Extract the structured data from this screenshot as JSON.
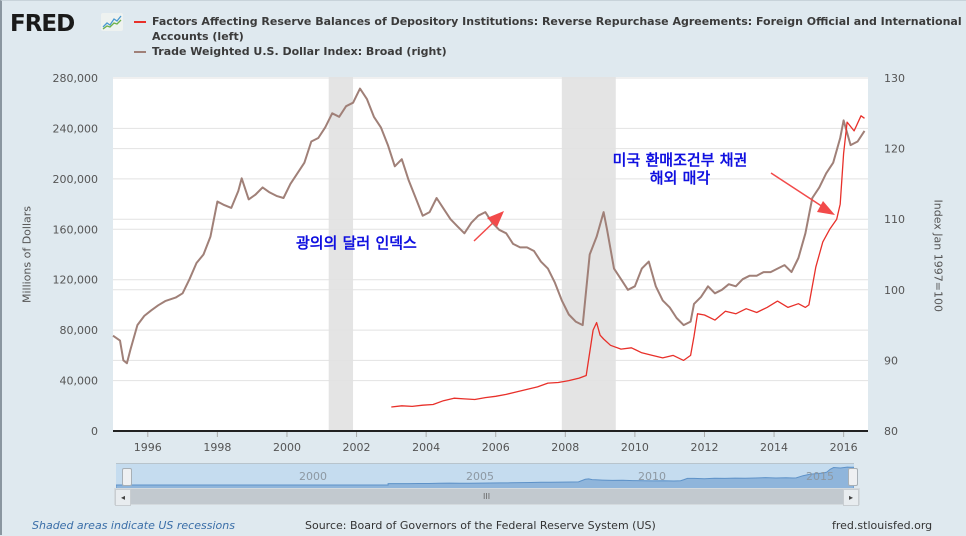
{
  "header": {
    "logo_text": "FRED",
    "logo_icon": "chart-line-icon"
  },
  "legend": [
    {
      "label": "Factors Affecting Reserve Balances of Depository Institutions: Reverse Repurchase Agreements: Foreign Official and International",
      "label_cont": "Accounts (left)",
      "color": "#e8302a"
    },
    {
      "label": "Trade Weighted U.S. Dollar Index: Broad (right)",
      "color": "#a08078"
    }
  ],
  "annotations": {
    "dollar_index": "광의의 달러 인덱스",
    "repo_line1": "미국 환매조건부 채권",
    "repo_line2": "해외 매각",
    "color": "#1010e0",
    "arrow_color": "#f24a4a"
  },
  "chart_data": {
    "type": "line",
    "title": "",
    "ylabel": "Millions of Dollars",
    "ylabel_right": "Index Jan 1997=100",
    "xlim": [
      1995.0,
      2016.7
    ],
    "ylim": [
      0,
      280000
    ],
    "ylim_right": [
      80,
      130
    ],
    "x_ticks": [
      "1996",
      "1998",
      "2000",
      "2002",
      "2004",
      "2006",
      "2008",
      "2010",
      "2012",
      "2014",
      "2016"
    ],
    "y_ticks": [
      "0",
      "40,000",
      "80,000",
      "120,000",
      "160,000",
      "200,000",
      "240,000",
      "280,000"
    ],
    "y_ticks_right": [
      "80",
      "90",
      "100",
      "110",
      "120",
      "130"
    ],
    "grid": true,
    "recessions": [
      [
        2001.2,
        2001.9
      ],
      [
        2007.9,
        2009.45
      ]
    ],
    "series": [
      {
        "name": "Trade Weighted U.S. Dollar Index: Broad (right)",
        "axis": "right",
        "color": "#a08078",
        "x": [
          1995.0,
          1995.2,
          1995.3,
          1995.4,
          1995.5,
          1995.7,
          1995.9,
          1996.1,
          1996.3,
          1996.5,
          1996.8,
          1997.0,
          1997.2,
          1997.4,
          1997.6,
          1997.8,
          1998.0,
          1998.2,
          1998.4,
          1998.6,
          1998.7,
          1998.9,
          1999.1,
          1999.3,
          1999.5,
          1999.7,
          1999.9,
          2000.1,
          2000.3,
          2000.5,
          2000.7,
          2000.9,
          2001.1,
          2001.3,
          2001.5,
          2001.7,
          2001.9,
          2002.1,
          2002.3,
          2002.5,
          2002.7,
          2002.9,
          2003.1,
          2003.3,
          2003.5,
          2003.7,
          2003.9,
          2004.1,
          2004.3,
          2004.5,
          2004.7,
          2004.9,
          2005.1,
          2005.3,
          2005.5,
          2005.7,
          2005.9,
          2006.1,
          2006.3,
          2006.5,
          2006.7,
          2006.9,
          2007.1,
          2007.3,
          2007.5,
          2007.7,
          2007.9,
          2008.1,
          2008.3,
          2008.5,
          2008.7,
          2008.9,
          2009.1,
          2009.2,
          2009.4,
          2009.6,
          2009.8,
          2010.0,
          2010.2,
          2010.4,
          2010.6,
          2010.8,
          2011.0,
          2011.2,
          2011.4,
          2011.6,
          2011.7,
          2011.9,
          2012.1,
          2012.3,
          2012.5,
          2012.7,
          2012.9,
          2013.1,
          2013.3,
          2013.5,
          2013.7,
          2013.9,
          2014.1,
          2014.3,
          2014.5,
          2014.7,
          2014.9,
          2015.1,
          2015.3,
          2015.5,
          2015.7,
          2015.9,
          2016.0,
          2016.2,
          2016.4,
          2016.6
        ],
        "values": [
          93.5,
          92.8,
          90.0,
          89.6,
          91.5,
          95.0,
          96.3,
          97.1,
          97.8,
          98.4,
          98.9,
          99.5,
          101.5,
          103.8,
          105.0,
          107.5,
          112.5,
          112.0,
          111.6,
          114.0,
          115.8,
          112.8,
          113.5,
          114.5,
          113.8,
          113.3,
          113.0,
          115.0,
          116.5,
          118.0,
          121.0,
          121.5,
          123.0,
          125.0,
          124.5,
          126.0,
          126.5,
          128.5,
          127.0,
          124.5,
          123.0,
          120.5,
          117.5,
          118.5,
          115.5,
          113.0,
          110.5,
          111.0,
          113.0,
          111.5,
          110.0,
          109.0,
          108.0,
          109.5,
          110.5,
          111.0,
          109.5,
          108.5,
          108.0,
          106.5,
          106.0,
          106.0,
          105.5,
          104.0,
          103.0,
          101.0,
          98.5,
          96.5,
          95.5,
          95.0,
          105.0,
          107.5,
          111.0,
          108.5,
          103.0,
          101.5,
          100.0,
          100.5,
          103.0,
          104.0,
          100.5,
          98.5,
          97.5,
          96.0,
          95.0,
          95.5,
          98.0,
          99.0,
          100.5,
          99.5,
          100.0,
          100.8,
          100.5,
          101.5,
          102.0,
          102.0,
          102.5,
          102.5,
          103.0,
          103.5,
          102.5,
          104.5,
          108.0,
          113.0,
          114.5,
          116.5,
          118.0,
          121.5,
          124.0,
          120.5,
          121.0,
          122.5
        ]
      },
      {
        "name": "Factors Affecting Reserve Balances of Depository Institutions: Reverse Repurchase Agreements: Foreign Official and International Accounts (left)",
        "axis": "left",
        "color": "#e8302a",
        "x": [
          2003.0,
          2003.3,
          2003.6,
          2003.9,
          2004.2,
          2004.5,
          2004.8,
          2005.1,
          2005.4,
          2005.7,
          2006.0,
          2006.3,
          2006.6,
          2006.9,
          2007.2,
          2007.5,
          2007.8,
          2008.1,
          2008.4,
          2008.6,
          2008.8,
          2008.9,
          2009.0,
          2009.1,
          2009.3,
          2009.6,
          2009.9,
          2010.2,
          2010.5,
          2010.8,
          2011.1,
          2011.4,
          2011.6,
          2011.7,
          2011.8,
          2012.0,
          2012.3,
          2012.6,
          2012.9,
          2013.2,
          2013.5,
          2013.8,
          2014.1,
          2014.4,
          2014.7,
          2014.9,
          2015.0,
          2015.2,
          2015.4,
          2015.6,
          2015.8,
          2015.9,
          2016.0,
          2016.1,
          2016.3,
          2016.5,
          2016.6
        ],
        "values": [
          19000,
          20000,
          19500,
          20500,
          21000,
          24000,
          26000,
          25500,
          25000,
          26500,
          27500,
          29000,
          31000,
          33000,
          35000,
          38000,
          38500,
          40000,
          42000,
          44000,
          80000,
          86000,
          76000,
          73000,
          68000,
          65000,
          66000,
          62000,
          60000,
          58000,
          60000,
          56000,
          60000,
          75000,
          93000,
          92000,
          88000,
          95000,
          93000,
          97000,
          94000,
          98000,
          103000,
          98000,
          101000,
          98000,
          100000,
          130000,
          150000,
          160000,
          168000,
          180000,
          220000,
          245000,
          238000,
          250000,
          248000
        ]
      }
    ]
  },
  "navigator": {
    "labels": [
      "2000",
      "2005",
      "2010",
      "2015"
    ],
    "scroll_grip": "III",
    "left_arrow": "◂",
    "right_arrow": "▸"
  },
  "footer": {
    "recession_note": "Shaded areas indicate US recessions",
    "source": "Source: Board of Governors of the Federal Reserve System (US)",
    "site": "fred.stlouisfed.org"
  }
}
